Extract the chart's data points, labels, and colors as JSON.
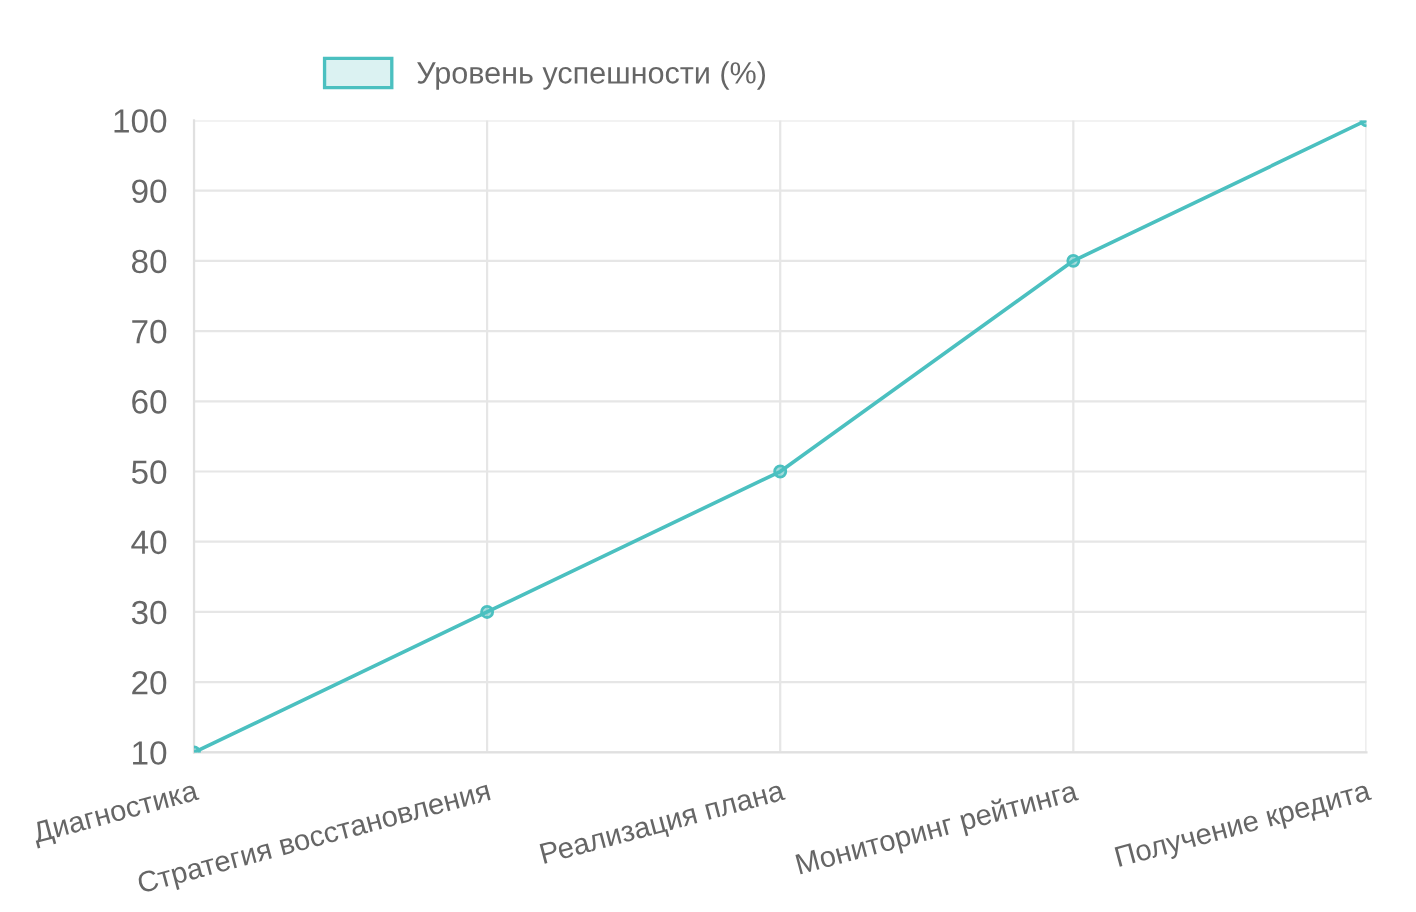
{
  "chart_data": {
    "type": "line",
    "categories": [
      "Диагностика",
      "Стратегия восстановления",
      "Реализация плана",
      "Мониторинг рейтинга",
      "Получение кредита"
    ],
    "series": [
      {
        "name": "Уровень успешности (%)",
        "color": "#4bc0c0",
        "values": [
          10,
          30,
          50,
          80,
          100
        ]
      }
    ],
    "ylim": [
      10,
      100
    ],
    "yticks": [
      10,
      20,
      30,
      40,
      50,
      60,
      70,
      80,
      90,
      100
    ],
    "grid": true,
    "legend": "top",
    "marker": "circle",
    "line_style": "solid"
  }
}
